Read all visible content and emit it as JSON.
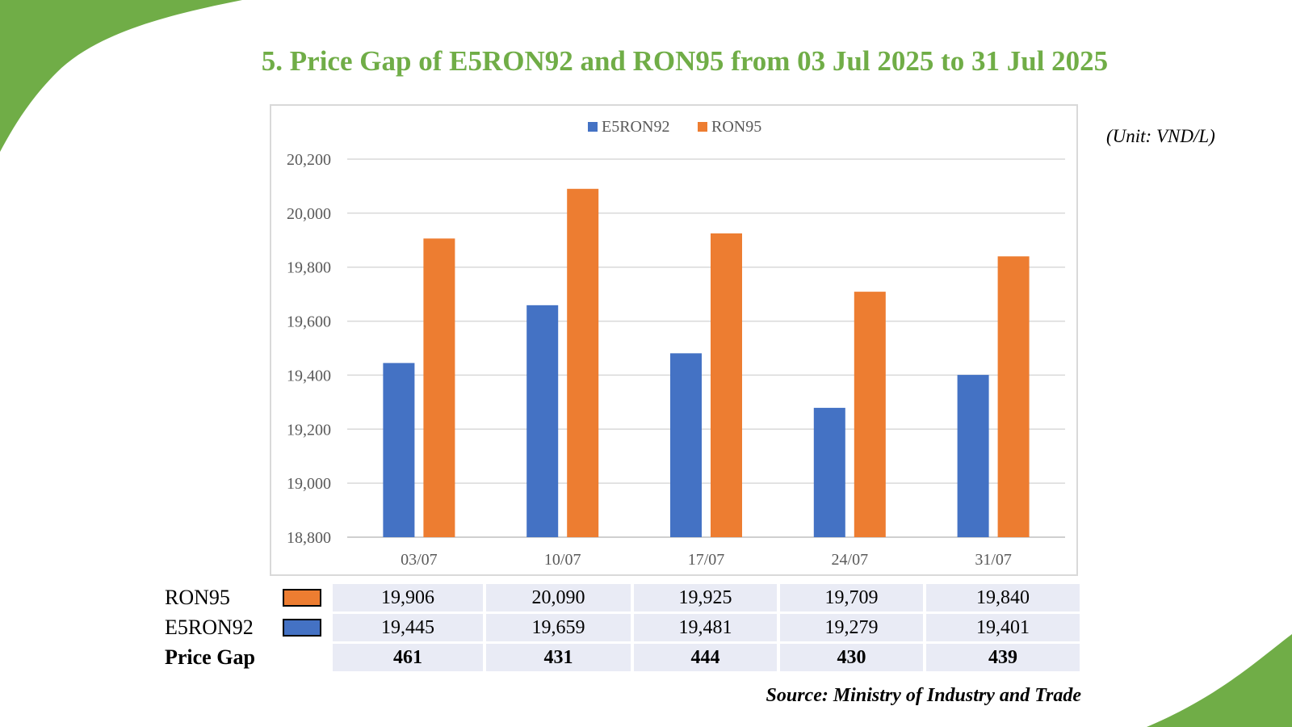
{
  "title": "5. Price Gap of E5RON92 and RON95 from 03 Jul 2025 to 31 Jul 2025",
  "unit": "(Unit: VND/L)",
  "source": "Source: Ministry of Industry and Trade",
  "colors": {
    "accent": "#70ad47",
    "e5ron92": "#4472c4",
    "ron95": "#ed7d31"
  },
  "chart_data": {
    "type": "bar",
    "categories": [
      "03/07",
      "10/07",
      "17/07",
      "24/07",
      "31/07"
    ],
    "series": [
      {
        "name": "E5RON92",
        "values": [
          19445,
          19659,
          19481,
          19279,
          19401
        ]
      },
      {
        "name": "RON95",
        "values": [
          19906,
          20090,
          19925,
          19709,
          19840
        ]
      }
    ],
    "ylim": [
      18800,
      20200
    ],
    "yticks": [
      18800,
      19000,
      19200,
      19400,
      19600,
      19800,
      20000,
      20200
    ],
    "ytick_labels": [
      "18,800",
      "19,000",
      "19,200",
      "19,400",
      "19,600",
      "19,800",
      "20,000",
      "20,200"
    ],
    "grid": true,
    "legend": "top"
  },
  "table": {
    "rows": [
      {
        "label": "RON95",
        "swatch": "#ed7d31",
        "values": [
          "19,906",
          "20,090",
          "19,925",
          "19,709",
          "19,840"
        ]
      },
      {
        "label": "E5RON92",
        "swatch": "#4472c4",
        "values": [
          "19,445",
          "19,659",
          "19,481",
          "19,279",
          "19,401"
        ]
      },
      {
        "label": "Price Gap",
        "values": [
          "461",
          "431",
          "444",
          "430",
          "439"
        ]
      }
    ]
  }
}
